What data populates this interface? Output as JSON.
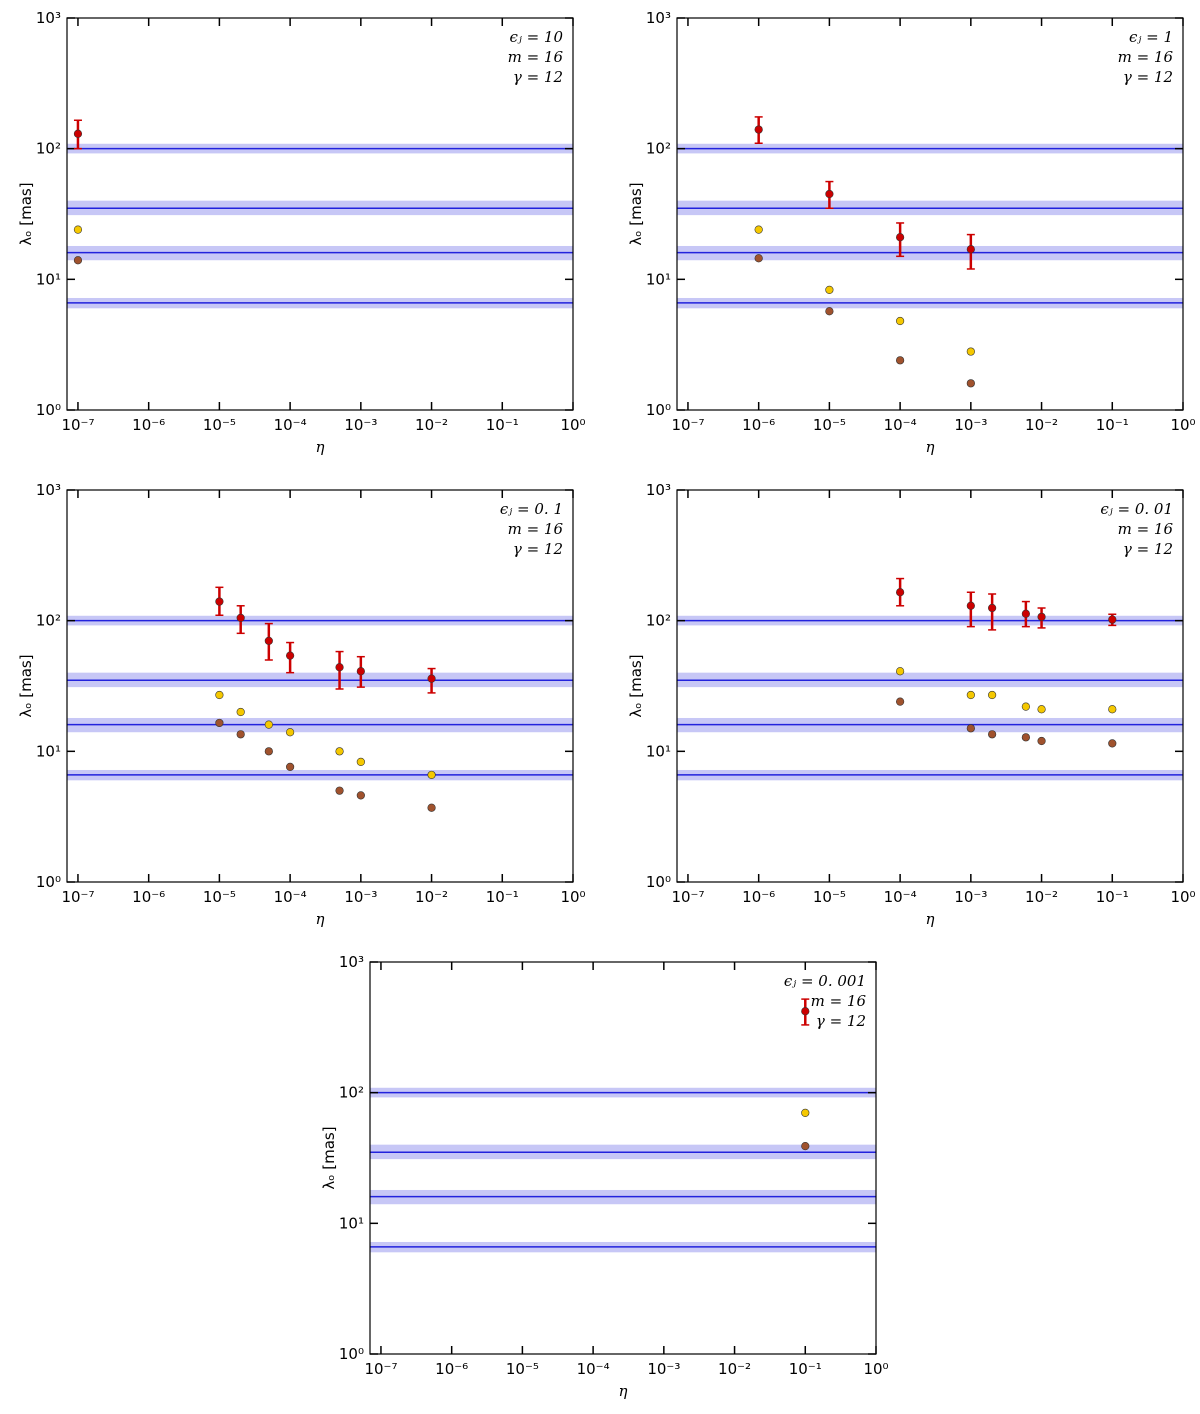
{
  "chart_data": [
    {
      "type": "scatter",
      "xlabel": "η",
      "ylabel": "λₒ [mas]",
      "annotations": [
        "ϵⱼ = 10",
        "m = 16",
        "γ = 12"
      ],
      "xscale": "log",
      "yscale": "log",
      "xlim": [
        7e-08,
        1
      ],
      "ylim": [
        1,
        1000
      ],
      "xticks": [
        {
          "value": 1e-07,
          "label": "10⁻⁷"
        },
        {
          "value": 1e-06,
          "label": "10⁻⁶"
        },
        {
          "value": 1e-05,
          "label": "10⁻⁵"
        },
        {
          "value": 0.0001,
          "label": "10⁻⁴"
        },
        {
          "value": 0.001,
          "label": "10⁻³"
        },
        {
          "value": 0.01,
          "label": "10⁻²"
        },
        {
          "value": 0.1,
          "label": "10⁻¹"
        },
        {
          "value": 1,
          "label": "10⁰"
        }
      ],
      "yticks": [
        {
          "value": 1,
          "label": "10⁰"
        },
        {
          "value": 10,
          "label": "10¹"
        },
        {
          "value": 100,
          "label": "10²"
        },
        {
          "value": 1000,
          "label": "10³"
        }
      ],
      "bands": [
        {
          "value": 100,
          "low": 92,
          "high": 109
        },
        {
          "value": 35,
          "low": 31,
          "high": 40
        },
        {
          "value": 16,
          "low": 14,
          "high": 18
        },
        {
          "value": 6.6,
          "low": 6.0,
          "high": 7.2
        }
      ],
      "series": [
        {
          "color": "#cc0000",
          "x": [
            1e-07
          ],
          "values": [
            130
          ],
          "err_low": [
            100
          ],
          "err_high": [
            165
          ]
        },
        {
          "color": "#f5c800",
          "x": [
            1e-07
          ],
          "values": [
            24
          ]
        },
        {
          "color": "#a0522d",
          "x": [
            1e-07
          ],
          "values": [
            14
          ]
        }
      ]
    },
    {
      "type": "scatter",
      "xlabel": "η",
      "ylabel": "λₒ [mas]",
      "annotations": [
        "ϵⱼ = 1",
        "m = 16",
        "γ = 12"
      ],
      "xscale": "log",
      "yscale": "log",
      "xlim": [
        7e-08,
        1
      ],
      "ylim": [
        1,
        1000
      ],
      "xticks": [
        {
          "value": 1e-07,
          "label": "10⁻⁷"
        },
        {
          "value": 1e-06,
          "label": "10⁻⁶"
        },
        {
          "value": 1e-05,
          "label": "10⁻⁵"
        },
        {
          "value": 0.0001,
          "label": "10⁻⁴"
        },
        {
          "value": 0.001,
          "label": "10⁻³"
        },
        {
          "value": 0.01,
          "label": "10⁻²"
        },
        {
          "value": 0.1,
          "label": "10⁻¹"
        },
        {
          "value": 1,
          "label": "10⁰"
        }
      ],
      "yticks": [
        {
          "value": 1,
          "label": "10⁰"
        },
        {
          "value": 10,
          "label": "10¹"
        },
        {
          "value": 100,
          "label": "10²"
        },
        {
          "value": 1000,
          "label": "10³"
        }
      ],
      "bands": [
        {
          "value": 100,
          "low": 92,
          "high": 109
        },
        {
          "value": 35,
          "low": 31,
          "high": 40
        },
        {
          "value": 16,
          "low": 14,
          "high": 18
        },
        {
          "value": 6.6,
          "low": 6.0,
          "high": 7.2
        }
      ],
      "series": [
        {
          "color": "#cc0000",
          "x": [
            1e-06,
            1e-05,
            0.0001,
            0.001
          ],
          "values": [
            140,
            45,
            21,
            17
          ],
          "err_low": [
            110,
            35,
            15,
            12
          ],
          "err_high": [
            175,
            56,
            27,
            22
          ]
        },
        {
          "color": "#f5c800",
          "x": [
            1e-06,
            1e-05,
            0.0001,
            0.001
          ],
          "values": [
            24,
            8.3,
            4.8,
            2.8
          ]
        },
        {
          "color": "#a0522d",
          "x": [
            1e-06,
            1e-05,
            0.0001,
            0.001
          ],
          "values": [
            14.5,
            5.7,
            2.4,
            1.6
          ]
        }
      ]
    },
    {
      "type": "scatter",
      "xlabel": "η",
      "ylabel": "λₒ [mas]",
      "annotations": [
        "ϵⱼ = 0. 1",
        "m = 16",
        "γ = 12"
      ],
      "xscale": "log",
      "yscale": "log",
      "xlim": [
        7e-08,
        1
      ],
      "ylim": [
        1,
        1000
      ],
      "xticks": [
        {
          "value": 1e-07,
          "label": "10⁻⁷"
        },
        {
          "value": 1e-06,
          "label": "10⁻⁶"
        },
        {
          "value": 1e-05,
          "label": "10⁻⁵"
        },
        {
          "value": 0.0001,
          "label": "10⁻⁴"
        },
        {
          "value": 0.001,
          "label": "10⁻³"
        },
        {
          "value": 0.01,
          "label": "10⁻²"
        },
        {
          "value": 0.1,
          "label": "10⁻¹"
        },
        {
          "value": 1,
          "label": "10⁰"
        }
      ],
      "yticks": [
        {
          "value": 1,
          "label": "10⁰"
        },
        {
          "value": 10,
          "label": "10¹"
        },
        {
          "value": 100,
          "label": "10²"
        },
        {
          "value": 1000,
          "label": "10³"
        }
      ],
      "bands": [
        {
          "value": 100,
          "low": 92,
          "high": 109
        },
        {
          "value": 35,
          "low": 31,
          "high": 40
        },
        {
          "value": 16,
          "low": 14,
          "high": 18
        },
        {
          "value": 6.6,
          "low": 6.0,
          "high": 7.2
        }
      ],
      "series": [
        {
          "color": "#cc0000",
          "x": [
            1e-05,
            2e-05,
            5e-05,
            0.0001,
            0.0005,
            0.001,
            0.01
          ],
          "values": [
            140,
            105,
            70,
            54,
            44,
            41,
            36
          ],
          "err_low": [
            110,
            80,
            50,
            40,
            30,
            31,
            28
          ],
          "err_high": [
            180,
            130,
            95,
            68,
            58,
            53,
            43
          ]
        },
        {
          "color": "#f5c800",
          "x": [
            1e-05,
            2e-05,
            5e-05,
            0.0001,
            0.0005,
            0.001,
            0.01
          ],
          "values": [
            27,
            20,
            16,
            14,
            10,
            8.3,
            6.6
          ]
        },
        {
          "color": "#a0522d",
          "x": [
            1e-05,
            2e-05,
            5e-05,
            0.0001,
            0.0005,
            0.001,
            0.01
          ],
          "values": [
            16.5,
            13.5,
            10,
            7.6,
            5,
            4.6,
            3.7
          ]
        }
      ]
    },
    {
      "type": "scatter",
      "xlabel": "η",
      "ylabel": "λₒ [mas]",
      "annotations": [
        "ϵⱼ = 0. 01",
        "m = 16",
        "γ = 12"
      ],
      "xscale": "log",
      "yscale": "log",
      "xlim": [
        7e-08,
        1
      ],
      "ylim": [
        1,
        1000
      ],
      "xticks": [
        {
          "value": 1e-07,
          "label": "10⁻⁷"
        },
        {
          "value": 1e-06,
          "label": "10⁻⁶"
        },
        {
          "value": 1e-05,
          "label": "10⁻⁵"
        },
        {
          "value": 0.0001,
          "label": "10⁻⁴"
        },
        {
          "value": 0.001,
          "label": "10⁻³"
        },
        {
          "value": 0.01,
          "label": "10⁻²"
        },
        {
          "value": 0.1,
          "label": "10⁻¹"
        },
        {
          "value": 1,
          "label": "10⁰"
        }
      ],
      "yticks": [
        {
          "value": 1,
          "label": "10⁰"
        },
        {
          "value": 10,
          "label": "10¹"
        },
        {
          "value": 100,
          "label": "10²"
        },
        {
          "value": 1000,
          "label": "10³"
        }
      ],
      "bands": [
        {
          "value": 100,
          "low": 92,
          "high": 109
        },
        {
          "value": 35,
          "low": 31,
          "high": 40
        },
        {
          "value": 16,
          "low": 14,
          "high": 18
        },
        {
          "value": 6.6,
          "low": 6.0,
          "high": 7.2
        }
      ],
      "series": [
        {
          "color": "#cc0000",
          "x": [
            0.0001,
            0.001,
            0.002,
            0.006,
            0.01,
            0.1
          ],
          "values": [
            165,
            130,
            125,
            113,
            107,
            102
          ],
          "err_low": [
            130,
            90,
            85,
            90,
            88,
            92
          ],
          "err_high": [
            210,
            165,
            160,
            140,
            125,
            112
          ]
        },
        {
          "color": "#f5c800",
          "x": [
            0.0001,
            0.001,
            0.002,
            0.006,
            0.01,
            0.1
          ],
          "values": [
            41,
            27,
            27,
            22,
            21,
            21
          ]
        },
        {
          "color": "#a0522d",
          "x": [
            0.0001,
            0.001,
            0.002,
            0.006,
            0.01,
            0.1
          ],
          "values": [
            24,
            15,
            13.5,
            12.8,
            12,
            11.5
          ]
        }
      ]
    },
    {
      "type": "scatter",
      "xlabel": "η",
      "ylabel": "λₒ [mas]",
      "annotations": [
        "ϵⱼ = 0. 001",
        "m = 16",
        "γ = 12"
      ],
      "xscale": "log",
      "yscale": "log",
      "xlim": [
        7e-08,
        1
      ],
      "ylim": [
        1,
        1000
      ],
      "xticks": [
        {
          "value": 1e-07,
          "label": "10⁻⁷"
        },
        {
          "value": 1e-06,
          "label": "10⁻⁶"
        },
        {
          "value": 1e-05,
          "label": "10⁻⁵"
        },
        {
          "value": 0.0001,
          "label": "10⁻⁴"
        },
        {
          "value": 0.001,
          "label": "10⁻³"
        },
        {
          "value": 0.01,
          "label": "10⁻²"
        },
        {
          "value": 0.1,
          "label": "10⁻¹"
        },
        {
          "value": 1,
          "label": "10⁰"
        }
      ],
      "yticks": [
        {
          "value": 1,
          "label": "10⁰"
        },
        {
          "value": 10,
          "label": "10¹"
        },
        {
          "value": 100,
          "label": "10²"
        },
        {
          "value": 1000,
          "label": "10³"
        }
      ],
      "bands": [
        {
          "value": 100,
          "low": 92,
          "high": 109
        },
        {
          "value": 35,
          "low": 31,
          "high": 40
        },
        {
          "value": 16,
          "low": 14,
          "high": 18
        },
        {
          "value": 6.6,
          "low": 6.0,
          "high": 7.2
        }
      ],
      "series": [
        {
          "color": "#cc0000",
          "x": [
            0.1
          ],
          "values": [
            420
          ],
          "err_low": [
            330
          ],
          "err_high": [
            520
          ]
        },
        {
          "color": "#f5c800",
          "x": [
            0.1
          ],
          "values": [
            70
          ]
        },
        {
          "color": "#a0522d",
          "x": [
            0.1
          ],
          "values": [
            39
          ]
        }
      ]
    }
  ]
}
